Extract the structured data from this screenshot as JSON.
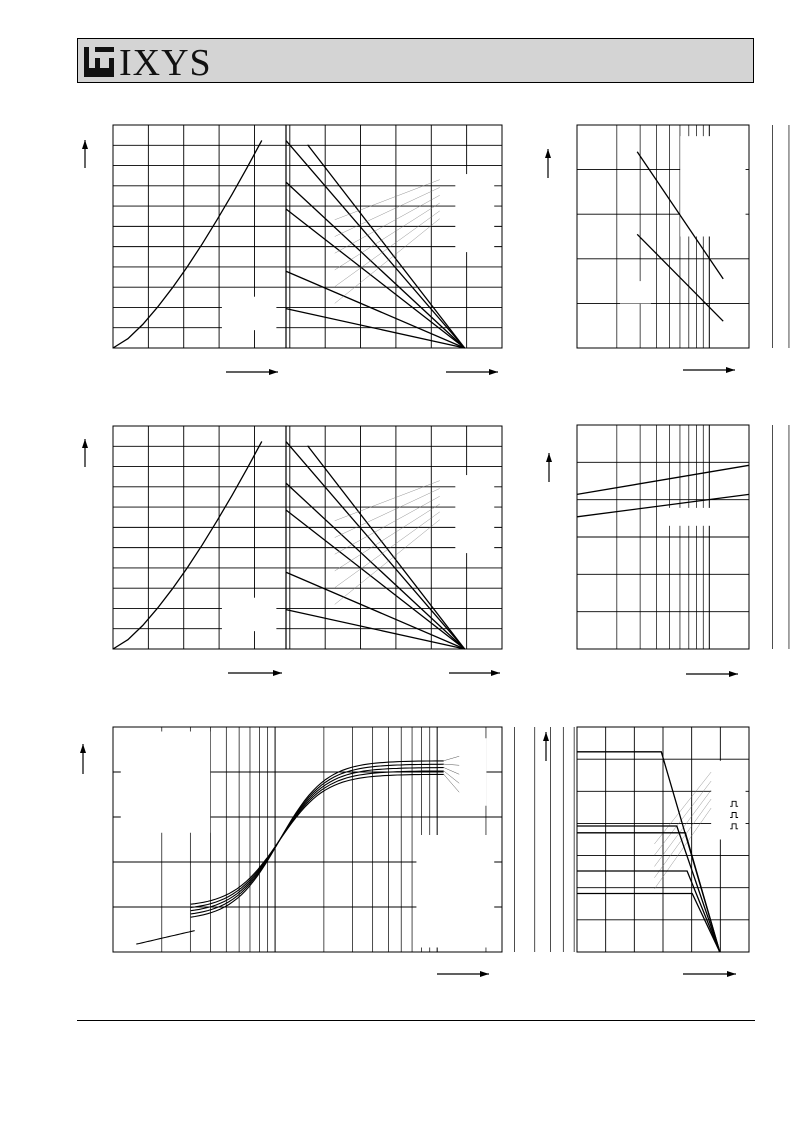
{
  "header": {
    "brand": "IXYS",
    "background": "#d4d4d4"
  },
  "chart_data": [
    {
      "type": "line",
      "panel": "top-left",
      "left_curve": {
        "x": [
          0,
          0.1,
          0.2,
          0.3,
          0.4,
          0.5,
          0.6,
          0.7,
          0.8,
          0.9,
          1.0
        ],
        "y": [
          0,
          0.1,
          0.2,
          0.3,
          0.41,
          0.52,
          0.63,
          0.75,
          0.87,
          0.99,
          1.1
        ]
      },
      "right_fan": [
        {
          "start_y": 1.0,
          "x0": 0,
          "x_end": 1.0
        },
        {
          "start_y": 0.98,
          "x0": 0.2,
          "x_end": 1.0
        },
        {
          "start_y": 0.8,
          "x0": 0,
          "x_end": 1.0
        },
        {
          "start_y": 0.67,
          "x0": 0,
          "x_end": 1.0
        },
        {
          "start_y": 0.37,
          "x0": 0,
          "x_end": 1.0
        },
        {
          "start_y": 0.19,
          "x0": 0,
          "x_end": 1.0
        }
      ],
      "grid": true
    },
    {
      "type": "line",
      "panel": "middle-left",
      "left_curve": {
        "x": [
          0,
          0.1,
          0.2,
          0.3,
          0.4,
          0.5,
          0.6,
          0.7,
          0.8,
          0.9,
          1.0
        ],
        "y": [
          0,
          0.1,
          0.2,
          0.3,
          0.41,
          0.52,
          0.63,
          0.75,
          0.87,
          0.99,
          1.1
        ]
      },
      "right_fan": [
        {
          "start_y": 1.0,
          "x0": 0,
          "x_end": 1.0
        },
        {
          "start_y": 0.98,
          "x0": 0.2,
          "x_end": 1.0
        },
        {
          "start_y": 0.8,
          "x0": 0,
          "x_end": 1.0
        },
        {
          "start_y": 0.67,
          "x0": 0,
          "x_end": 1.0
        },
        {
          "start_y": 0.37,
          "x0": 0,
          "x_end": 1.0
        },
        {
          "start_y": 0.19,
          "x0": 0,
          "x_end": 1.0
        }
      ],
      "grid": true
    },
    {
      "type": "line",
      "panel": "top-right",
      "x_scale": "log",
      "series": [
        {
          "x": [
            0.35,
            0.85
          ],
          "y": [
            0.88,
            0.31
          ]
        },
        {
          "x": [
            0.35,
            0.85
          ],
          "y": [
            0.51,
            0.12
          ]
        }
      ],
      "grid": true
    },
    {
      "type": "line",
      "panel": "middle-right",
      "x_scale": "log",
      "series": [
        {
          "x": [
            0,
            1
          ],
          "y": [
            0.69,
            0.82
          ]
        },
        {
          "x": [
            0,
            1
          ],
          "y": [
            0.59,
            0.69
          ]
        }
      ],
      "grid": true
    },
    {
      "type": "line",
      "panel": "bottom-left",
      "x_scale": "log",
      "series": [
        {
          "offset": 0.0
        },
        {
          "offset": 0.025
        },
        {
          "offset": 0.05
        },
        {
          "offset": 0.075
        },
        {
          "offset": 0.1
        }
      ],
      "grid": true
    },
    {
      "type": "line",
      "panel": "bottom-right",
      "series": [
        {
          "flat_y": 0.89,
          "knee_x": 0.49
        },
        {
          "flat_y": 0.56,
          "knee_x": 0.58
        },
        {
          "flat_y": 0.53,
          "knee_x": 0.63
        },
        {
          "flat_y": 0.36,
          "knee_x": 0.64
        },
        {
          "flat_y": 0.26,
          "knee_x": 0.67
        }
      ],
      "end_x": 0.83,
      "grid": true
    }
  ]
}
